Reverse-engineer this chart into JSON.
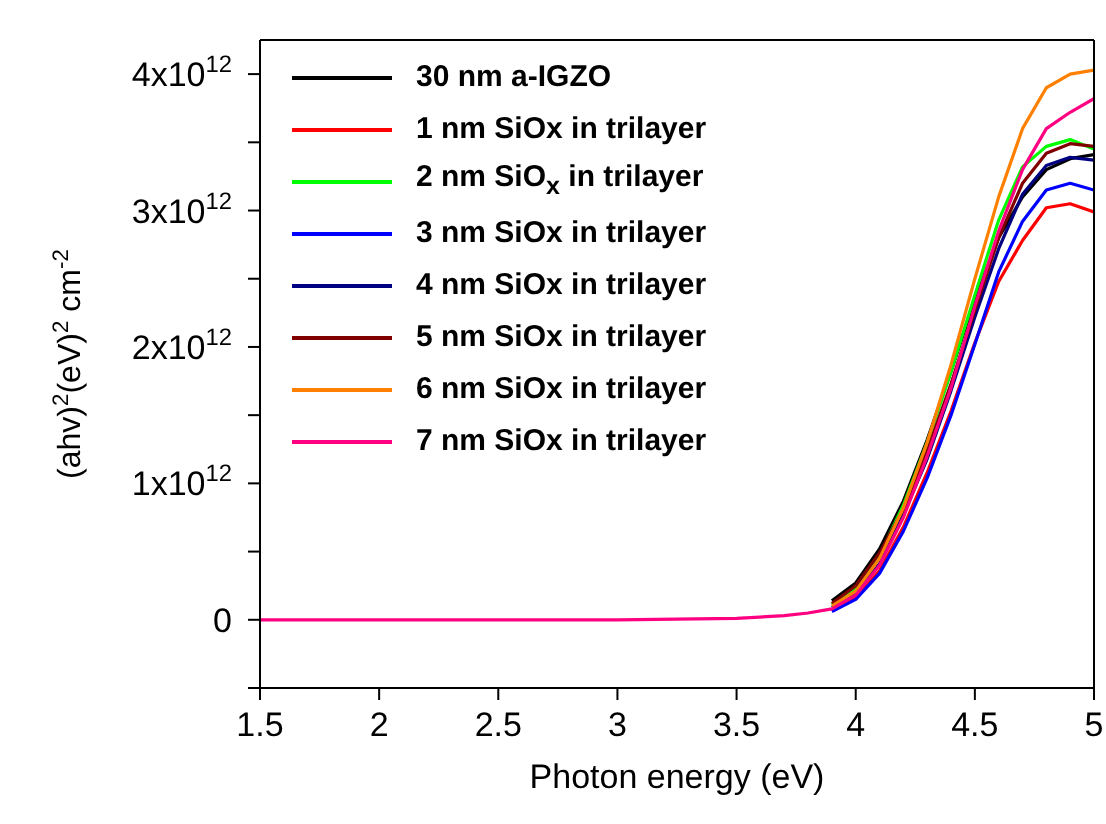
{
  "chart_data": {
    "type": "line",
    "xlabel": "Photon energy (eV)",
    "ylabel": "(ahv)$^{2}$(eV)$^{2}$ cm$^{-2}$",
    "x": [
      1.5,
      2,
      2.5,
      3,
      3.5,
      3.7,
      3.8,
      3.9,
      4.0,
      4.1,
      4.2,
      4.3,
      4.4,
      4.5,
      4.6,
      4.7,
      4.8,
      4.9,
      5.0
    ],
    "series": [
      {
        "name": "30 nm a-IGZO",
        "color": "#000000",
        "values": [
          null,
          null,
          null,
          null,
          null,
          null,
          null,
          140000000000.0,
          270000000000.0,
          520000000000.0,
          870000000000.0,
          1320000000000.0,
          1820000000000.0,
          2350000000000.0,
          2800000000000.0,
          3100000000000.0,
          3300000000000.0,
          3380000000000.0,
          3410000000000.0
        ]
      },
      {
        "name": "1 nm SiOx in trilayer",
        "color": "#ff0000",
        "values": [
          null,
          null,
          null,
          null,
          null,
          null,
          null,
          70000000000.0,
          160000000000.0,
          360000000000.0,
          680000000000.0,
          1080000000000.0,
          1530000000000.0,
          2030000000000.0,
          2480000000000.0,
          2780000000000.0,
          3020000000000.0,
          3050000000000.0,
          2990000000000.0
        ]
      },
      {
        "name": "2 nm SiO$_{x}$ in trilayer",
        "color": "#00ff00",
        "values": [
          null,
          null,
          null,
          null,
          null,
          null,
          null,
          110000000000.0,
          230000000000.0,
          470000000000.0,
          840000000000.0,
          1300000000000.0,
          1820000000000.0,
          2380000000000.0,
          2930000000000.0,
          3320000000000.0,
          3470000000000.0,
          3520000000000.0,
          3450000000000.0
        ]
      },
      {
        "name": "3 nm SiOx in trilayer",
        "color": "#0000ff",
        "values": [
          null,
          null,
          null,
          null,
          null,
          null,
          null,
          60000000000.0,
          150000000000.0,
          340000000000.0,
          650000000000.0,
          1040000000000.0,
          1500000000000.0,
          2020000000000.0,
          2550000000000.0,
          2920000000000.0,
          3150000000000.0,
          3200000000000.0,
          3150000000000.0
        ]
      },
      {
        "name": "4 nm SiOx in trilayer",
        "color": "#000080",
        "values": [
          null,
          null,
          null,
          null,
          null,
          null,
          null,
          90000000000.0,
          190000000000.0,
          410000000000.0,
          770000000000.0,
          1180000000000.0,
          1680000000000.0,
          2220000000000.0,
          2720000000000.0,
          3120000000000.0,
          3330000000000.0,
          3390000000000.0,
          3370000000000.0
        ]
      },
      {
        "name": "5 nm SiOx in trilayer",
        "color": "#800000",
        "values": [
          null,
          null,
          null,
          null,
          null,
          null,
          null,
          120000000000.0,
          250000000000.0,
          490000000000.0,
          810000000000.0,
          1240000000000.0,
          1730000000000.0,
          2270000000000.0,
          2800000000000.0,
          3200000000000.0,
          3420000000000.0,
          3490000000000.0,
          3470000000000.0
        ]
      },
      {
        "name": "6 nm SiOx in trilayer",
        "color": "#ff8000",
        "values": [
          null,
          null,
          null,
          null,
          null,
          null,
          null,
          100000000000.0,
          210000000000.0,
          450000000000.0,
          820000000000.0,
          1300000000000.0,
          1870000000000.0,
          2500000000000.0,
          3100000000000.0,
          3600000000000.0,
          3900000000000.0,
          4000000000000.0,
          4030000000000.0
        ]
      },
      {
        "name": "7 nm SiOx in trilayer",
        "color": "#ff0080",
        "values": [
          0,
          0,
          0,
          0,
          10000000000.0,
          30000000000.0,
          50000000000.0,
          80000000000.0,
          180000000000.0,
          400000000000.0,
          750000000000.0,
          1200000000000.0,
          1700000000000.0,
          2300000000000.0,
          2850000000000.0,
          3300000000000.0,
          3600000000000.0,
          3720000000000.0,
          3820000000000.0
        ]
      }
    ],
    "xlim": [
      1.5,
      5
    ],
    "xticks": [
      1.5,
      2,
      2.5,
      3,
      3.5,
      4,
      4.5,
      5
    ],
    "ylim": [
      -500000000000.0,
      4250000000000.0
    ],
    "yticks": [
      {
        "value": -500000000000.0,
        "label": null
      },
      {
        "value": 0,
        "label": "0"
      },
      {
        "value": 500000000000.0,
        "label": null
      },
      {
        "value": 1000000000000.0,
        "label": "1x10$^{12}$"
      },
      {
        "value": 1500000000000.0,
        "label": null
      },
      {
        "value": 2000000000000.0,
        "label": "2x10$^{12}$"
      },
      {
        "value": 2500000000000.0,
        "label": null
      },
      {
        "value": 3000000000000.0,
        "label": "3x10$^{12}$"
      },
      {
        "value": 3500000000000.0,
        "label": null
      },
      {
        "value": 4000000000000.0,
        "label": "4x10$^{12}$"
      }
    ],
    "legend": "top left",
    "grid": false,
    "marker": "none",
    "line_style": "solid"
  }
}
